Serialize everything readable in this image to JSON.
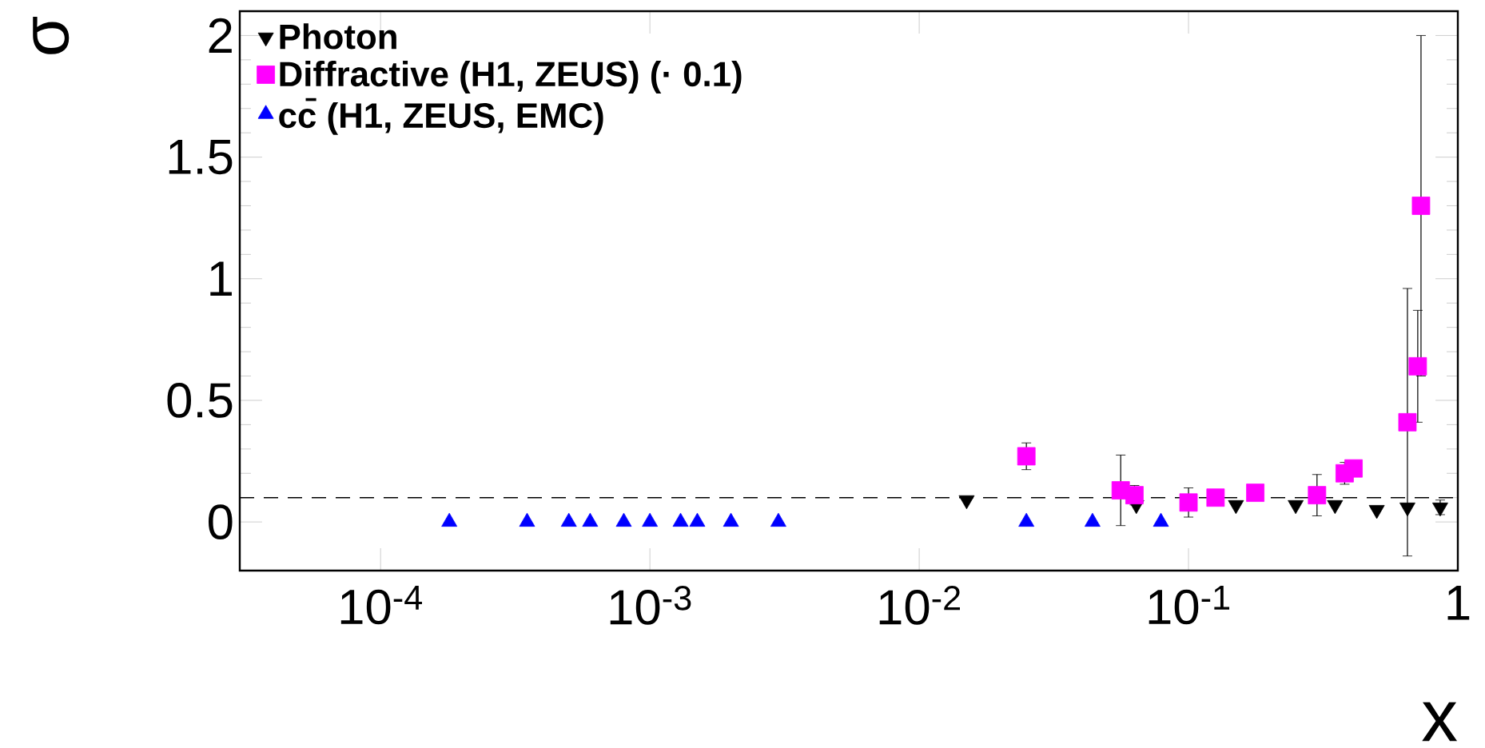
{
  "chart_data": {
    "type": "scatter",
    "xlabel": "x",
    "ylabel": "σ",
    "log": "x",
    "xlim": [
      3e-05,
      1
    ],
    "ylim": [
      -0.2,
      2.1
    ],
    "xticks": [
      {
        "value": 0.0001,
        "label": "10$^{-4}$"
      },
      {
        "value": 0.001,
        "label": "10$^{-3}$"
      },
      {
        "value": 0.01,
        "label": "10$^{-2}$"
      },
      {
        "value": 0.1,
        "label": "10$^{-1}$"
      },
      1
    ],
    "yticks": [
      0,
      0.5,
      1,
      1.5,
      2
    ],
    "legend": "top left",
    "grid": false,
    "ref_lines": [
      {
        "axis": "y",
        "value": 0.1,
        "color": "#000000",
        "line_style": "dashed"
      }
    ],
    "series": [
      {
        "name": "Photon",
        "color": "#000000",
        "marker": "triangle_down",
        "x": [
          0.015,
          0.064,
          0.15,
          0.25,
          0.35,
          0.5,
          0.65,
          0.86
        ],
        "values": [
          0.09,
          0.07,
          0.07,
          0.07,
          0.07,
          0.05,
          0.06,
          0.06
        ],
        "errors": [
          null,
          null,
          null,
          null,
          null,
          null,
          null,
          0.03
        ]
      },
      {
        "name": "Diffractive (H1, ZEUS) (· 0.1)",
        "color": "#ff00ff",
        "marker": "square",
        "x": [
          0.025,
          0.056,
          0.063,
          0.1,
          0.126,
          0.177,
          0.3,
          0.38,
          0.41,
          0.65,
          0.71,
          0.73
        ],
        "values": [
          0.27,
          0.13,
          0.11,
          0.08,
          0.1,
          0.12,
          0.11,
          0.2,
          0.22,
          0.41,
          0.64,
          1.3
        ],
        "errors": [
          0.055,
          0.145,
          0.04,
          0.06,
          null,
          null,
          0.085,
          0.045,
          null,
          0.55,
          0.23,
          0.7
        ]
      },
      {
        "name": "cc̄ (H1, ZEUS, EMC)",
        "color": "#0000ff",
        "marker": "triangle",
        "x": [
          0.00018,
          0.00035,
          0.0005,
          0.0006,
          0.0008,
          0.001,
          0.0013,
          0.0015,
          0.002,
          0.003,
          0.025,
          0.044,
          0.079
        ],
        "values": [
          0,
          0,
          0,
          0,
          0,
          0,
          0,
          0,
          0,
          0,
          0,
          0,
          0
        ]
      }
    ]
  }
}
